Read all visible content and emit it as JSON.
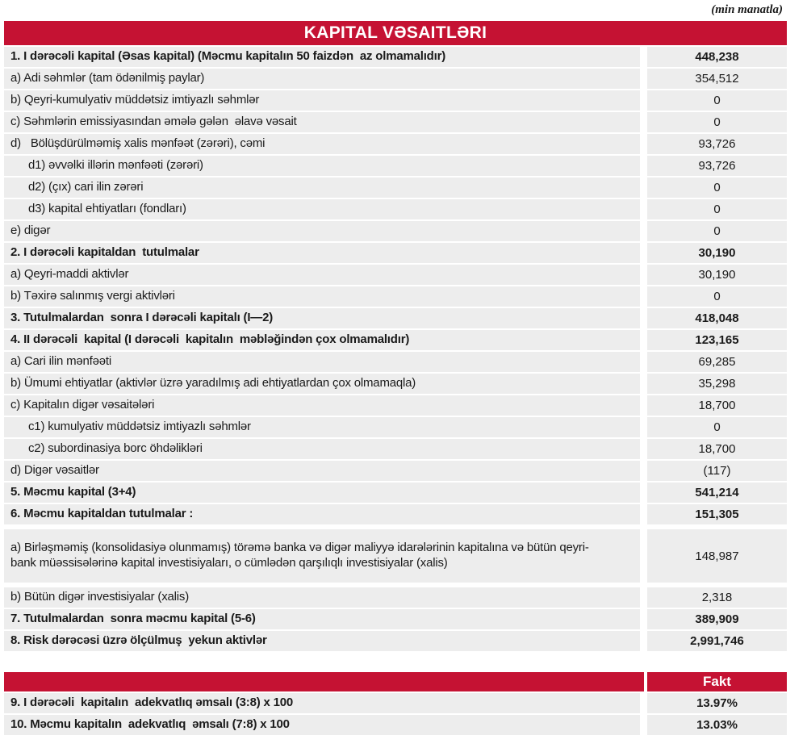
{
  "unit_note": "(min manatla)",
  "title": "KAPITAL VƏSAITLƏRI",
  "colors": {
    "accent_red": "#C51233",
    "row_gray": "#EDEDED"
  },
  "capital_table": {
    "rows": [
      {
        "label": "1. I dərəcəli kapital (Əsas kapital) (Məcmu kapitalın 50 faizdən  az olmamalıdır)",
        "value": "448,238"
      },
      {
        "label": "a) Adi səhmlər (tam ödənilmiş paylar)",
        "value": "354,512"
      },
      {
        "label": "b) Qeyri-kumulyativ müddətsiz imtiyazlı səhmlər",
        "value": "0"
      },
      {
        "label": "c) Səhmlərin emissiyasından əmələ gələn  əlavə vəsait",
        "value": "0"
      },
      {
        "label": "d)   Bölüşdürülməmiş xalis mənfəət (zərəri), cəmi",
        "value": "93,726"
      },
      {
        "label": "d1) əvvəlki illərin mənfəəti (zərəri)",
        "value": "93,726"
      },
      {
        "label": "d2) (çıx) cari ilin zərəri",
        "value": "0"
      },
      {
        "label": "d3) kapital ehtiyatları (fondları)",
        "value": "0"
      },
      {
        "label": "e) digər",
        "value": "0"
      },
      {
        "label": "2. I dərəcəli kapitaldan  tutulmalar",
        "value": "30,190"
      },
      {
        "label": "a) Qeyri-maddi aktivlər",
        "value": "30,190"
      },
      {
        "label": "b) Təxirə salınmış vergi aktivləri",
        "value": "0"
      },
      {
        "label": "3. Tutulmalardan  sonra I dərəcəli kapitalı (I—2)",
        "value": "418,048"
      },
      {
        "label": "4. II dərəcəli  kapital (I dərəcəli  kapitalın  məbləğindən çox olmamalıdır)",
        "value": "123,165"
      },
      {
        "label": "a) Cari ilin mənfəəti",
        "value": "69,285"
      },
      {
        "label": "b) Ümumi ehtiyatlar (aktivlər üzrə yaradılmış adi ehtiyatlardan çox olmamaqla)",
        "value": "35,298"
      },
      {
        "label": "c) Kapitalın digər vəsaitələri",
        "value": "18,700"
      },
      {
        "label": "c1) kumulyativ müddətsiz imtiyazlı səhmlər",
        "value": "0"
      },
      {
        "label": "c2) subordinasiya borc öhdəlikləri",
        "value": "18,700"
      },
      {
        "label": "d) Digər vəsaitlər",
        "value": "(117)"
      },
      {
        "label": "5. Məcmu kapital (3+4)",
        "value": "541,214"
      },
      {
        "label": "6. Məcmu kapitaldan tutulmalar :",
        "value": "151,305"
      },
      {
        "label": "a) Birləşməmiş (konsolidasiyə olunmamış) törəmə banka və digər maliyyə idarələrinin kapitalına və bütün qeyri-bank müəssisələrinə kapital investisiyaları, o cümlədən qarşılıqlı investisiyalar (xalis)",
        "value": "148,987"
      },
      {
        "label": "b) Bütün digər investisiyalar (xalis)",
        "value": "2,318"
      },
      {
        "label": "7. Tutulmalardan  sonra məcmu kapital (5-6)",
        "value": "389,909"
      },
      {
        "label": "8. Risk dərəcəsi üzrə ölçülmuş  yekun aktivlər",
        "value": "2,991,746"
      }
    ]
  },
  "adequacy_table": {
    "header": "Fakt",
    "rows": [
      {
        "label": "9. I dərəcəli  kapitalın  adekvatlıq əmsalı (3:8) x 100",
        "value": "13.97%"
      },
      {
        "label": "10. Məcmu kapitalın  adekvatlıq  əmsalı (7:8) x 100",
        "value": "13.03%"
      }
    ]
  }
}
